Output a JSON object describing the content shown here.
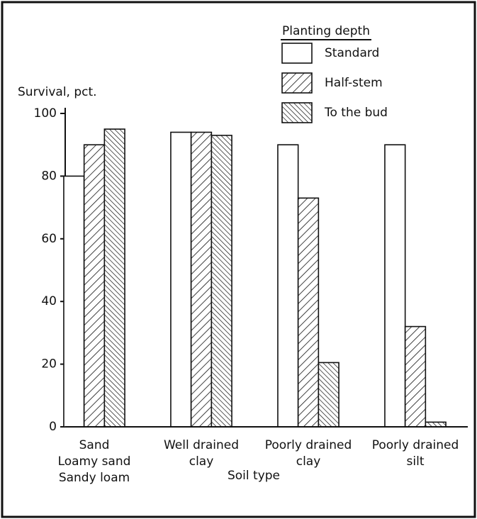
{
  "chart_data": {
    "type": "bar",
    "ylabel": "Survival, pct.",
    "xlabel": "Soil type",
    "legend_title": "Planting depth",
    "categories": [
      [
        "Sand",
        "Loamy sand",
        "Sandy loam"
      ],
      [
        "Well drained",
        "clay"
      ],
      [
        "Poorly drained",
        "clay"
      ],
      [
        "Poorly drained",
        "silt"
      ]
    ],
    "series": [
      {
        "name": "Standard",
        "color": "#ffffff",
        "hatch": "none",
        "values": [
          80,
          94,
          90,
          90
        ]
      },
      {
        "name": "Half-stem",
        "color": "#ffffff",
        "hatch": "forward",
        "values": [
          90,
          94,
          73,
          32
        ]
      },
      {
        "name": "To the bud",
        "color": "#ffffff",
        "hatch": "back",
        "values": [
          95,
          93,
          20.5,
          1.5
        ]
      }
    ],
    "ylim": [
      0,
      100
    ],
    "yticks": [
      0,
      20,
      40,
      60,
      80,
      100
    ],
    "grid": false,
    "legend": "upper right"
  }
}
